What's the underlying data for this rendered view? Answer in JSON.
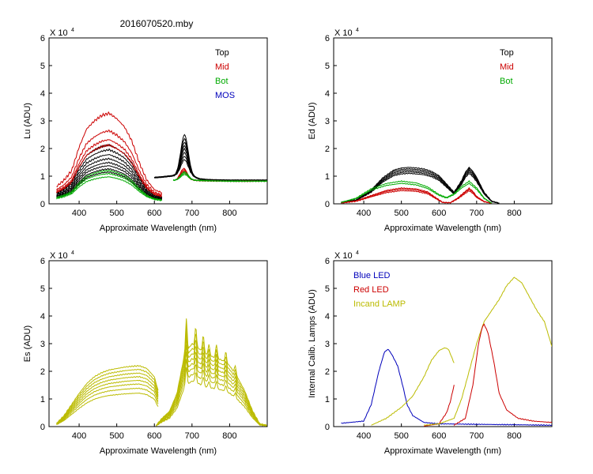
{
  "figure_title": "2016070520.mby",
  "chart_data": [
    {
      "type": "line",
      "id": "lu",
      "ylabel": "Lu (ADU)",
      "xlabel": "Approximate Wavelength (nm)",
      "exponent_label": "X 10",
      "exponent_power": "4",
      "xlim": [
        320,
        900
      ],
      "ylim": [
        0,
        6
      ],
      "xticks": [
        400,
        500,
        600,
        700,
        800
      ],
      "yticks": [
        0,
        1,
        2,
        3,
        4,
        5,
        6
      ],
      "legend": [
        {
          "name": "Top",
          "color": "#000000"
        },
        {
          "name": "Mid",
          "color": "#cc0000"
        },
        {
          "name": "Bot",
          "color": "#00aa00"
        },
        {
          "name": "MOS",
          "color": "#0000bb"
        }
      ],
      "series": [
        {
          "name": "Top",
          "color": "#000000",
          "scales": [
            1.0,
            1.1,
            1.2,
            1.3,
            1.42,
            1.55,
            1.7,
            1.85
          ],
          "shortwave": {
            "x": [
              340,
              360,
              380,
              400,
              420,
              440,
              460,
              480,
              500,
              520,
              540,
              560,
              580,
              600,
              620
            ],
            "y": [
              0.22,
              0.3,
              0.42,
              0.72,
              0.95,
              1.05,
              1.12,
              1.15,
              1.08,
              0.98,
              0.8,
              0.52,
              0.3,
              0.18,
              0.14
            ]
          },
          "longwave": {
            "x": [
              600,
              620,
              640,
              660,
              670,
              680,
              690,
              700,
              720,
              740,
              760,
              800,
              850,
              900
            ],
            "y": [
              0.95,
              0.97,
              1.0,
              1.02,
              1.05,
              1.1,
              1.05,
              1.0,
              0.9,
              0.87,
              0.86,
              0.85,
              0.85,
              0.85
            ]
          },
          "peak": {
            "center": 680,
            "width": 14,
            "amps": [
              0.5,
              0.62,
              0.75,
              0.88,
              1.0,
              1.12,
              1.25,
              1.4
            ]
          }
        },
        {
          "name": "Mid",
          "color": "#cc0000",
          "scales": [
            1.85,
            2.02,
            2.3,
            2.85
          ],
          "shortwave": {
            "x": [
              340,
              360,
              380,
              400,
              420,
              440,
              460,
              480,
              500,
              520,
              540,
              560,
              580,
              600,
              620
            ],
            "y": [
              0.22,
              0.3,
              0.42,
              0.72,
              0.95,
              1.05,
              1.12,
              1.15,
              1.08,
              0.98,
              0.8,
              0.52,
              0.3,
              0.18,
              0.14
            ]
          },
          "longwave": {
            "x": [
              660,
              680,
              700,
              720,
              750,
              800,
              850,
              900
            ],
            "y": [
              0.85,
              0.88,
              0.86,
              0.84,
              0.83,
              0.82,
              0.82,
              0.82
            ]
          },
          "peak": {
            "center": 678,
            "width": 13,
            "amps": [
              0.25,
              0.3,
              0.35,
              0.4
            ]
          }
        },
        {
          "name": "Bot",
          "color": "#00aa00",
          "scales": [
            0.85,
            0.95,
            1.05
          ],
          "shortwave": {
            "x": [
              340,
              360,
              380,
              400,
              420,
              440,
              460,
              480,
              500,
              520,
              540,
              560,
              580,
              600,
              620
            ],
            "y": [
              0.22,
              0.3,
              0.42,
              0.72,
              0.95,
              1.05,
              1.12,
              1.15,
              1.08,
              0.98,
              0.8,
              0.52,
              0.3,
              0.18,
              0.14
            ]
          },
          "longwave": {
            "x": [
              650,
              670,
              690,
              710,
              730,
              760,
              800,
              850,
              900
            ],
            "y": [
              0.85,
              0.85,
              0.86,
              0.85,
              0.84,
              0.83,
              0.82,
              0.82,
              0.82
            ]
          },
          "peak": {
            "center": 680,
            "width": 14,
            "amps": [
              0.2,
              0.25,
              0.3
            ]
          }
        }
      ]
    },
    {
      "type": "line",
      "id": "ed",
      "ylabel": "Ed  (ADU)",
      "xlabel": "Approximate Wavelength (nm)",
      "exponent_label": "X 10",
      "exponent_power": "4",
      "xlim": [
        320,
        900
      ],
      "ylim": [
        0,
        6
      ],
      "xticks": [
        400,
        500,
        600,
        700,
        800
      ],
      "yticks": [
        0,
        1,
        2,
        3,
        4,
        5,
        6
      ],
      "legend": [
        {
          "name": "Top",
          "color": "#000000"
        },
        {
          "name": "Mid",
          "color": "#cc0000"
        },
        {
          "name": "Bot",
          "color": "#00aa00"
        }
      ],
      "series": [
        {
          "name": "Top",
          "color": "#000000",
          "scales": [
            1.0,
            1.05,
            1.1,
            1.15,
            1.2
          ],
          "x": [
            340,
            380,
            420,
            450,
            480,
            500,
            520,
            540,
            560,
            580,
            600,
            620,
            640,
            660,
            670,
            680,
            690,
            700,
            720,
            740,
            760
          ],
          "y": [
            0.05,
            0.12,
            0.42,
            0.78,
            1.02,
            1.08,
            1.1,
            1.08,
            1.05,
            0.98,
            0.85,
            0.6,
            0.35,
            0.7,
            0.95,
            1.1,
            0.98,
            0.8,
            0.35,
            0.08,
            0.02
          ]
        },
        {
          "name": "Mid",
          "color": "#cc0000",
          "scales": [
            0.9,
            1.0,
            1.08
          ],
          "x": [
            340,
            380,
            420,
            460,
            500,
            540,
            570,
            590,
            610,
            630,
            650,
            670,
            680,
            690,
            700,
            720,
            740
          ],
          "y": [
            0.03,
            0.1,
            0.28,
            0.45,
            0.53,
            0.5,
            0.4,
            0.22,
            0.05,
            0.04,
            0.2,
            0.42,
            0.52,
            0.42,
            0.25,
            0.08,
            0.02
          ]
        },
        {
          "name": "Bot",
          "color": "#00aa00",
          "scales": [
            0.95,
            1.05
          ],
          "x": [
            340,
            380,
            420,
            460,
            500,
            540,
            570,
            600,
            620,
            640,
            660,
            680,
            700,
            720,
            740
          ],
          "y": [
            0.05,
            0.2,
            0.52,
            0.7,
            0.78,
            0.72,
            0.58,
            0.32,
            0.22,
            0.35,
            0.6,
            0.78,
            0.55,
            0.2,
            0.02
          ]
        }
      ]
    },
    {
      "type": "line",
      "id": "es",
      "ylabel": "Es  (ADU)",
      "xlabel": "Approximate Wavelength (nm)",
      "exponent_label": "X 10",
      "exponent_power": "4",
      "xlim": [
        320,
        900
      ],
      "ylim": [
        0,
        6
      ],
      "xticks": [
        400,
        500,
        600,
        700,
        800
      ],
      "yticks": [
        0,
        1,
        2,
        3,
        4,
        5,
        6
      ],
      "legend": [],
      "series": [
        {
          "name": "Es",
          "color": "#bbbb00",
          "scales": [
            0.55,
            0.63,
            0.7,
            0.76,
            0.82,
            0.88,
            0.94,
            1.0
          ],
          "shortwave": {
            "x": [
              340,
              360,
              380,
              400,
              420,
              440,
              460,
              480,
              500,
              520,
              540,
              560,
              580,
              600,
              610
            ],
            "y": [
              0.12,
              0.4,
              0.8,
              1.2,
              1.55,
              1.8,
              1.95,
              2.05,
              2.1,
              2.15,
              2.18,
              2.2,
              2.1,
              1.8,
              1.3
            ]
          },
          "longwave": {
            "x": [
              605,
              620,
              640,
              660,
              680,
              700,
              720,
              740,
              760,
              780,
              800,
              820,
              840,
              860,
              880,
              900
            ],
            "y": [
              0.05,
              0.3,
              0.55,
              1.2,
              2.6,
              3.0,
              2.8,
              2.6,
              2.5,
              2.4,
              2.2,
              1.8,
              1.3,
              0.6,
              0.1,
              0.05
            ]
          },
          "spikes": [
            {
              "x": 685,
              "h": 1.2
            },
            {
              "x": 710,
              "h": 0.7
            },
            {
              "x": 730,
              "h": 0.6
            },
            {
              "x": 745,
              "h": 0.4
            },
            {
              "x": 765,
              "h": 0.5
            },
            {
              "x": 790,
              "h": 0.4
            },
            {
              "x": 815,
              "h": 0.3
            }
          ]
        }
      ]
    },
    {
      "type": "line",
      "id": "lamps",
      "ylabel": "Internal Calib. Lamps (ADU)",
      "xlabel": "Approximate Wavelength (nm)",
      "exponent_label": "X 10",
      "exponent_power": "4",
      "xlim": [
        320,
        900
      ],
      "ylim": [
        0,
        6
      ],
      "xticks": [
        400,
        500,
        600,
        700,
        800
      ],
      "yticks": [
        0,
        1,
        2,
        3,
        4,
        5,
        6
      ],
      "legend": [
        {
          "name": "Blue LED",
          "color": "#0000bb"
        },
        {
          "name": "Red LED",
          "color": "#cc0000"
        },
        {
          "name": "Incand LAMP",
          "color": "#bbbb00"
        }
      ],
      "series": [
        {
          "name": "Blue LED",
          "color": "#0000bb",
          "x": [
            340,
            400,
            420,
            440,
            455,
            465,
            475,
            490,
            505,
            515,
            530,
            560,
            600,
            900
          ],
          "y": [
            0.12,
            0.2,
            0.8,
            2.0,
            2.7,
            2.8,
            2.6,
            2.2,
            1.4,
            0.8,
            0.4,
            0.15,
            0.1,
            0.05
          ]
        },
        {
          "name": "Incand LAMP (short)",
          "color": "#bbbb00",
          "x": [
            420,
            460,
            500,
            530,
            560,
            580,
            600,
            615,
            625,
            640
          ],
          "y": [
            0.05,
            0.3,
            0.7,
            1.1,
            1.8,
            2.4,
            2.75,
            2.85,
            2.8,
            2.3
          ]
        },
        {
          "name": "Red LED (short)",
          "color": "#cc0000",
          "x": [
            560,
            600,
            620,
            630,
            640
          ],
          "y": [
            0.02,
            0.1,
            0.5,
            0.9,
            1.5
          ]
        },
        {
          "name": "Incand LAMP (long)",
          "color": "#bbbb00",
          "x": [
            560,
            600,
            640,
            660,
            680,
            700,
            720,
            740,
            760,
            780,
            800,
            820,
            840,
            860,
            880,
            900
          ],
          "y": [
            0.05,
            0.1,
            0.3,
            1.0,
            2.0,
            3.0,
            3.8,
            4.2,
            4.6,
            5.1,
            5.4,
            5.2,
            4.7,
            4.2,
            3.8,
            2.9
          ]
        },
        {
          "name": "Red LED (long)",
          "color": "#cc0000",
          "x": [
            640,
            670,
            690,
            705,
            715,
            720,
            730,
            745,
            760,
            780,
            810,
            850,
            900
          ],
          "y": [
            0.05,
            0.3,
            1.5,
            3.0,
            3.6,
            3.7,
            3.4,
            2.4,
            1.2,
            0.6,
            0.3,
            0.2,
            0.15
          ]
        }
      ]
    }
  ]
}
